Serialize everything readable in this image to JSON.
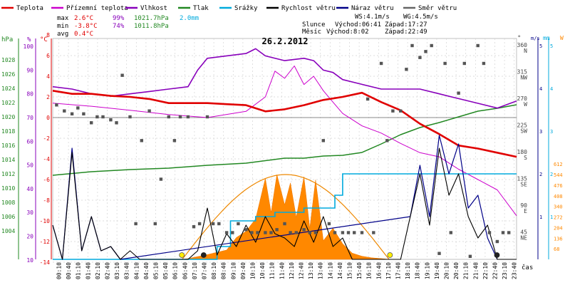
{
  "chart_data": {
    "type": "line",
    "title": "26.2.2012",
    "legend": [
      {
        "name": "Teplota",
        "color": "#e00000"
      },
      {
        "name": "Přízemní teplota",
        "color": "#cc00cc"
      },
      {
        "name": "Vlhkost",
        "color": "#8800bb"
      },
      {
        "name": "Tlak",
        "color": "#228822"
      },
      {
        "name": "Srážky",
        "color": "#00aadd"
      },
      {
        "name": "Rychlost větru",
        "color": "#000000"
      },
      {
        "name": "Náraz větru",
        "color": "#000088"
      },
      {
        "name": "Směr větru",
        "color": "#666666"
      }
    ],
    "stats": {
      "max": {
        "label": "max",
        "temp": "2.6°C",
        "hum": "99%",
        "press": "1021.7hPa",
        "rain": "2.0mm"
      },
      "min": {
        "label": "min",
        "temp": "-3.8°C",
        "hum": "74%",
        "press": "1011.8hPa"
      },
      "avg": {
        "label": "avg",
        "temp": "0.4°C"
      }
    },
    "wind_info": {
      "ws": "WS:4.1m/s",
      "wg": "WG:4.5m/s"
    },
    "sun": {
      "label": "Slunce",
      "rise": "Východ:06:41",
      "set": "Západ:17:27"
    },
    "moon": {
      "label": "Měsíc",
      "rise": "Východ:8:02",
      "set": "Západ:22:49"
    },
    "axes": {
      "hpa": {
        "unit": "hPa",
        "ticks": [
          "1028",
          "1026",
          "1024",
          "1022",
          "1020",
          "1018",
          "1016",
          "1014",
          "1012",
          "1010",
          "1008",
          "1006",
          "1004"
        ],
        "color": "#228822"
      },
      "pct": {
        "unit": "%",
        "ticks": [
          "100",
          "90",
          "80",
          "70",
          "60",
          "50",
          "40",
          "30",
          "20",
          "10"
        ],
        "color": "#8800bb"
      },
      "temp": {
        "unit": "°C",
        "ticks": [
          "8",
          "6",
          "4",
          "2",
          "0",
          "-2",
          "-4",
          "-6",
          "-8",
          "-10",
          "-12",
          "-14"
        ],
        "color": "#e00000"
      },
      "dir": {
        "unit": "°",
        "ticks": [
          "360 N",
          "315 NW",
          "270 W",
          "225 SW",
          "180 S",
          "135 SE",
          "90 E",
          "45 NE"
        ],
        "color": "#444444"
      },
      "ms": {
        "unit": "m/s",
        "ticks": [
          "5",
          "4",
          "3",
          "2",
          "1"
        ],
        "color": "#000088"
      },
      "mm": {
        "unit": "mm",
        "ticks": [
          "5",
          "4",
          "3",
          "2",
          "1"
        ],
        "color": "#00aadd"
      },
      "wm2": {
        "unit": "W",
        "ticks": [
          "612",
          "544",
          "476",
          "408",
          "340",
          "272",
          "204",
          "136",
          "68"
        ],
        "color": "#ff8800"
      },
      "x_label": "čas",
      "x_ticks": [
        "00:10",
        "00:40",
        "01:10",
        "01:40",
        "02:10",
        "02:40",
        "03:10",
        "03:40",
        "04:10",
        "04:40",
        "05:10",
        "05:40",
        "06:10",
        "06:40",
        "07:10",
        "07:40",
        "08:10",
        "08:40",
        "09:10",
        "09:40",
        "10:10",
        "10:40",
        "11:10",
        "11:40",
        "12:10",
        "12:40",
        "13:10",
        "13:40",
        "14:10",
        "14:40",
        "15:10",
        "15:40",
        "16:10",
        "16:40",
        "17:10",
        "17:40",
        "18:10",
        "18:40",
        "19:10",
        "19:40",
        "20:10",
        "20:40",
        "21:10",
        "21:40",
        "22:10",
        "22:40",
        "23:10",
        "23:40"
      ]
    },
    "series": {
      "temperature": {
        "x": [
          0,
          1,
          2,
          3,
          4,
          5,
          6,
          7,
          8,
          9,
          10,
          11,
          12,
          13,
          14,
          15,
          16,
          17,
          18,
          19,
          20,
          21,
          22,
          23,
          24
        ],
        "values": [
          2.6,
          2.3,
          2.3,
          2.1,
          2.0,
          1.8,
          1.4,
          1.4,
          1.4,
          1.3,
          1.2,
          0.6,
          0.8,
          1.2,
          1.7,
          2.0,
          2.4,
          1.5,
          0.7,
          -0.6,
          -1.6,
          -2.7,
          -3.0,
          -3.4,
          -3.8
        ]
      },
      "ground_temperature": {
        "x": [
          0,
          2,
          4,
          6,
          8,
          10,
          11,
          11.5,
          12,
          12.5,
          13,
          13.5,
          14,
          14.5,
          15,
          16,
          17,
          18,
          19,
          20,
          21,
          22,
          23,
          24
        ],
        "values": [
          1.4,
          1.1,
          0.7,
          0.3,
          0.0,
          0.6,
          2.0,
          4.5,
          3.8,
          5.0,
          3.2,
          4.0,
          2.6,
          1.5,
          0.4,
          -0.8,
          -1.5,
          -2.5,
          -3.4,
          -3.8,
          -5.0,
          -6.0,
          -7.0,
          -9.5
        ]
      },
      "humidity": {
        "x": [
          0,
          1,
          2,
          3,
          4,
          5,
          6,
          7,
          7.5,
          8,
          9,
          10,
          10.5,
          11,
          12,
          13,
          13.5,
          14,
          14.5,
          15,
          16,
          17,
          18,
          19,
          20,
          21,
          22,
          23,
          24
        ],
        "values": [
          83,
          82,
          80,
          79,
          80,
          81,
          82,
          83,
          90,
          95,
          96,
          97,
          99,
          96,
          94,
          95,
          94,
          90,
          89,
          86,
          84,
          82,
          82,
          82,
          80,
          78,
          76,
          74,
          77
        ]
      },
      "pressure": {
        "x": [
          0,
          2,
          4,
          6,
          8,
          10,
          12,
          13,
          14,
          15,
          16,
          17,
          18,
          19,
          20,
          21,
          22,
          23,
          24
        ],
        "values": [
          1011.8,
          1012.3,
          1012.6,
          1012.8,
          1013.2,
          1013.5,
          1014.2,
          1014.2,
          1014.5,
          1014.6,
          1015.0,
          1016.2,
          1017.5,
          1018.5,
          1019.2,
          1020.0,
          1020.8,
          1021.2,
          1021.7
        ]
      },
      "rain": {
        "x": [
          0,
          8.2,
          8.5,
          9.2,
          10.5,
          11.5,
          12.3,
          13,
          14.2,
          14.6,
          15,
          24
        ],
        "values": [
          0,
          0,
          0.3,
          0.9,
          1.0,
          1.1,
          1.1,
          1.2,
          1.2,
          1.5,
          2.0,
          2.0
        ]
      },
      "wind_speed": {
        "x": [
          0,
          0.5,
          1,
          1.5,
          2,
          2.5,
          3,
          3.5,
          4,
          4.5,
          5,
          5.5,
          6,
          6.5,
          7,
          7.5,
          8,
          8.5,
          9,
          9.5,
          10,
          10.5,
          11,
          11.5,
          12,
          12.5,
          13,
          13.5,
          14,
          14.5,
          15,
          15.5,
          16,
          16.5,
          17,
          17.5,
          18,
          18.5,
          19,
          19.5,
          20,
          20.5,
          21,
          21.5,
          22,
          22.5,
          23,
          23.5,
          24
        ],
        "values": [
          0.8,
          0.0,
          2.5,
          0.2,
          1.0,
          0.2,
          0.3,
          0.0,
          0.2,
          0.0,
          0.0,
          0.0,
          0.0,
          0.0,
          0.0,
          0.2,
          1.2,
          0.1,
          0.6,
          0.3,
          0.8,
          0.4,
          1.0,
          0.6,
          0.5,
          0.3,
          0.9,
          0.4,
          1.0,
          0.3,
          0.5,
          0.0,
          0.0,
          0.0,
          0.0,
          0.0,
          0.0,
          1.0,
          2.0,
          0.8,
          2.6,
          1.5,
          2.0,
          1.0,
          0.5,
          0.8,
          0.0,
          0.0,
          0.0
        ]
      },
      "wind_gust": {
        "x": [
          0,
          0.5,
          1,
          1.5,
          2,
          2.5,
          3,
          3.5,
          18.5,
          19,
          19.5,
          20,
          20.5,
          21,
          21.5,
          22,
          22.5,
          23
        ],
        "values": [
          0.8,
          0.0,
          2.6,
          0.2,
          1.0,
          0.2,
          0.3,
          0.0,
          1.0,
          2.2,
          1.0,
          2.9,
          2.0,
          2.7,
          1.2,
          1.5,
          0.5,
          0.0
        ]
      },
      "radiation": {
        "x": [
          6.7,
          7,
          8,
          9,
          9.5,
          10,
          10.5,
          11,
          11.3,
          11.6,
          12,
          12.3,
          12.6,
          13,
          13.3,
          13.6,
          14,
          14.5,
          15,
          15.5,
          16,
          16.5,
          17,
          17.4
        ],
        "values": [
          0,
          5,
          30,
          60,
          140,
          180,
          260,
          520,
          300,
          544,
          350,
          490,
          270,
          530,
          200,
          510,
          120,
          200,
          100,
          40,
          20,
          10,
          5,
          0
        ]
      },
      "clear_sky_radiation": {
        "x": [
          6.7,
          8,
          9,
          10,
          11,
          12,
          13,
          14,
          15,
          16,
          17,
          17.4
        ],
        "values": [
          0,
          160,
          310,
          430,
          510,
          544,
          530,
          470,
          370,
          230,
          70,
          0
        ]
      },
      "wind_direction": {
        "x": [
          0.2,
          0.6,
          1,
          1.3,
          1.6,
          2,
          2.3,
          2.6,
          3,
          3.3,
          3.6,
          4,
          4.3,
          4.6,
          5,
          5.3,
          5.6,
          6,
          6.3,
          6.6,
          7,
          7.3,
          7.6,
          8,
          8.3,
          8.6,
          9,
          9.3,
          9.6,
          10,
          10.3,
          10.6,
          11,
          11.3,
          11.6,
          12,
          12.3,
          12.6,
          13,
          13.3,
          13.6,
          14,
          14.3,
          14.6,
          15,
          15.3,
          15.6,
          16,
          16.3,
          16.6,
          17,
          17.3,
          17.6,
          18,
          18.3,
          18.6,
          19,
          19.3,
          19.6,
          20,
          20.3,
          20.6,
          21,
          21.3,
          21.6,
          22,
          22.3,
          22.6,
          23,
          23.3,
          23.6
        ],
        "values": [
          260,
          250,
          245,
          255,
          245,
          230,
          240,
          240,
          235,
          230,
          310,
          240,
          60,
          200,
          250,
          60,
          135,
          240,
          200,
          240,
          240,
          55,
          60,
          240,
          60,
          60,
          45,
          45,
          60,
          50,
          45,
          45,
          45,
          45,
          50,
          60,
          45,
          45,
          50,
          45,
          45,
          200,
          60,
          45,
          45,
          45,
          45,
          45,
          270,
          45,
          330,
          200,
          250,
          250,
          320,
          360,
          340,
          350,
          360,
          10,
          330,
          45,
          280,
          330,
          5,
          360,
          330,
          45,
          30,
          45,
          45
        ]
      }
    },
    "xlim": [
      0,
      24
    ],
    "ylim_temperature": [
      -14,
      9
    ]
  }
}
